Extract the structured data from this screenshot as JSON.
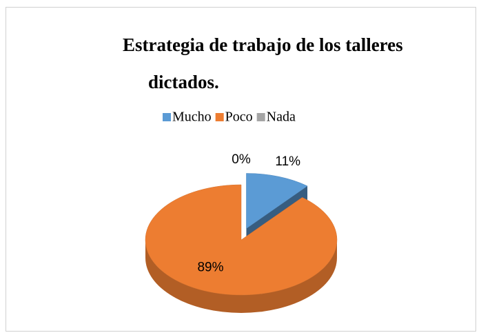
{
  "chart_data": {
    "type": "pie",
    "title": "Estrategia de trabajo de los talleres dictados.",
    "categories": [
      "Mucho",
      "Poco",
      "Nada"
    ],
    "values": [
      11,
      89,
      0
    ],
    "value_labels": [
      "11%",
      "89%",
      "0%"
    ],
    "colors": [
      "#5b9bd5",
      "#ed7d31",
      "#a5a5a5"
    ],
    "legend": "top"
  }
}
